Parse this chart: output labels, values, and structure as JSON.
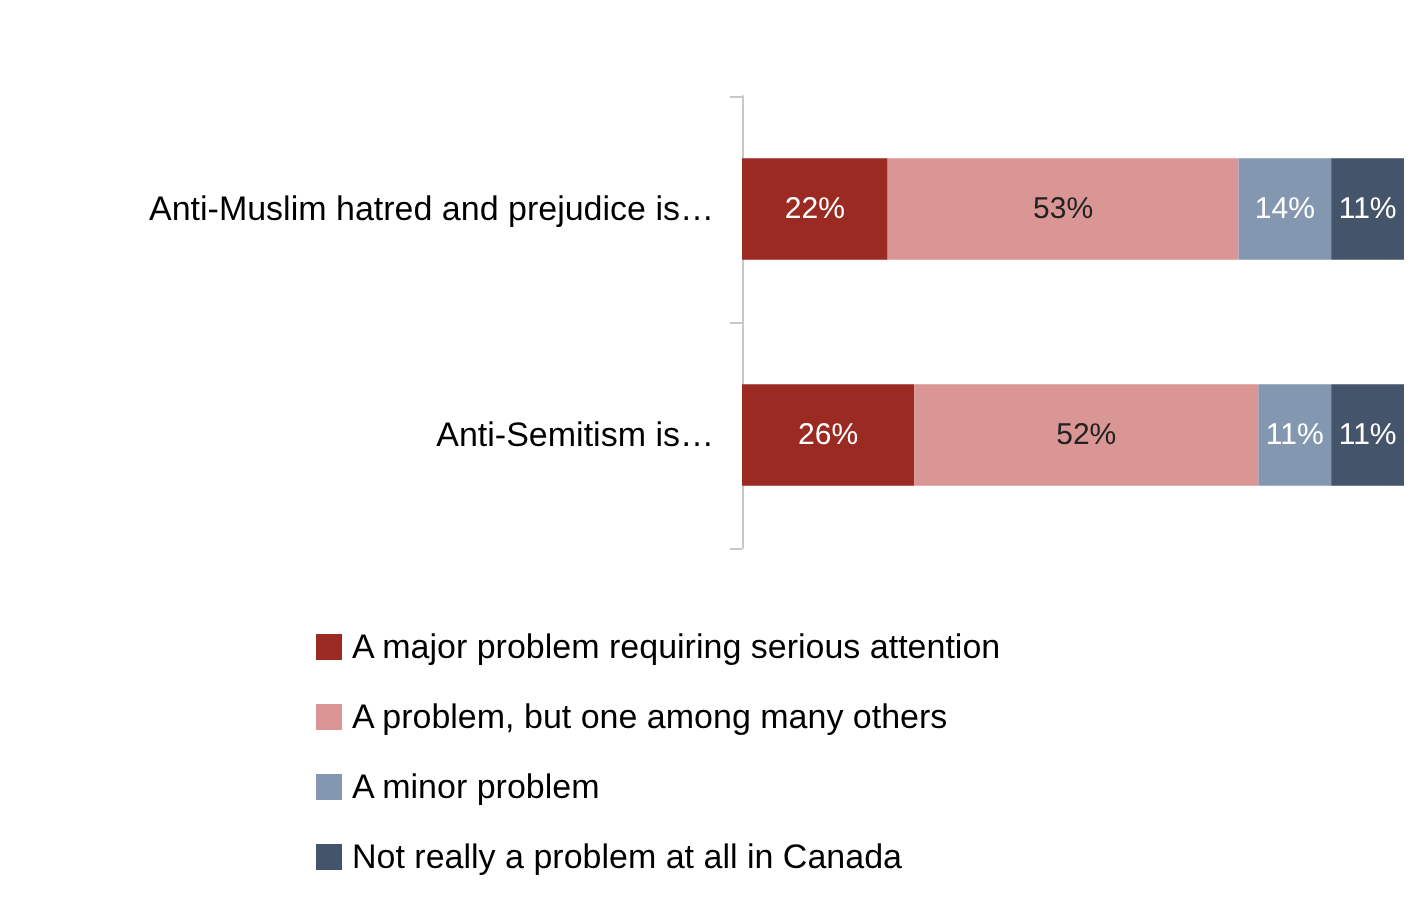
{
  "chart_data": {
    "type": "bar",
    "orientation": "horizontal",
    "stacked": true,
    "legend": "bottom",
    "categories": [
      "Anti-Muslim hatred and prejudice is…",
      "Anti-Semitism is…"
    ],
    "series": [
      {
        "name": "A major problem requiring serious attention",
        "color": "#9b2a22",
        "values": [
          22,
          26
        ],
        "value_labels": [
          "22%",
          "26%"
        ]
      },
      {
        "name": "A problem, but one among many others",
        "color": "#d99694",
        "values": [
          53,
          52
        ],
        "value_labels": [
          "53%",
          "52%"
        ]
      },
      {
        "name": "A minor problem",
        "color": "#8497b0",
        "values": [
          14,
          11
        ],
        "value_labels": [
          "14%",
          "11%"
        ]
      },
      {
        "name": "Not really a problem at all in Canada",
        "color": "#44546a",
        "values": [
          11,
          11
        ],
        "value_labels": [
          "11%",
          "11%"
        ]
      }
    ]
  }
}
